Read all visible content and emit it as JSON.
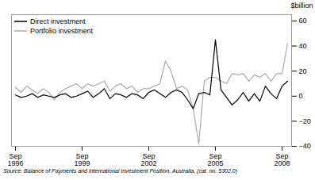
{
  "chart_data": {
    "type": "line",
    "caption": "Source:  Balance of Payments and International Investment Position, Australia,  (cat.  no.  5302.0)",
    "y_label": "$billion",
    "categories": [
      "Sep\n1996",
      null,
      null,
      null,
      null,
      null,
      null,
      null,
      null,
      null,
      null,
      null,
      "Sep\n1999",
      null,
      null,
      null,
      null,
      null,
      null,
      null,
      null,
      null,
      null,
      null,
      "Sep\n2002",
      null,
      null,
      null,
      null,
      null,
      null,
      null,
      null,
      null,
      null,
      null,
      "Sep\n2005",
      null,
      null,
      null,
      null,
      null,
      null,
      null,
      null,
      null,
      null,
      null,
      "Sep\n2008",
      null
    ],
    "series": [
      {
        "name": "Direct investment",
        "color": "#000000",
        "values": [
          1,
          -1,
          0,
          2,
          -1,
          1,
          0,
          -1,
          1,
          2,
          -1,
          0,
          2,
          4,
          -1,
          2,
          6,
          -2,
          2,
          1,
          -1,
          2,
          1,
          -2,
          3,
          5,
          2,
          -1,
          3,
          5,
          3,
          -3,
          -10,
          2,
          3,
          1,
          45,
          5,
          -1,
          -7,
          -3,
          3,
          -4,
          2,
          -4,
          8,
          2,
          -2,
          8,
          12
        ]
      },
      {
        "name": "Portfolio investment",
        "color": "#aaaaaa",
        "values": [
          7,
          3,
          8,
          5,
          2,
          6,
          3,
          -3,
          3,
          6,
          8,
          10,
          6,
          10,
          8,
          10,
          12,
          4,
          8,
          10,
          6,
          8,
          3,
          6,
          6,
          8,
          10,
          28,
          20,
          6,
          8,
          5,
          -10,
          -38,
          12,
          15,
          15,
          12,
          10,
          18,
          17,
          18,
          12,
          17,
          15,
          18,
          12,
          18,
          18,
          42
        ]
      }
    ],
    "ylim": [
      -40,
      65
    ],
    "yticks": [
      -40,
      -20,
      0,
      20,
      40,
      60
    ],
    "grid": false,
    "legend": "top-left"
  }
}
